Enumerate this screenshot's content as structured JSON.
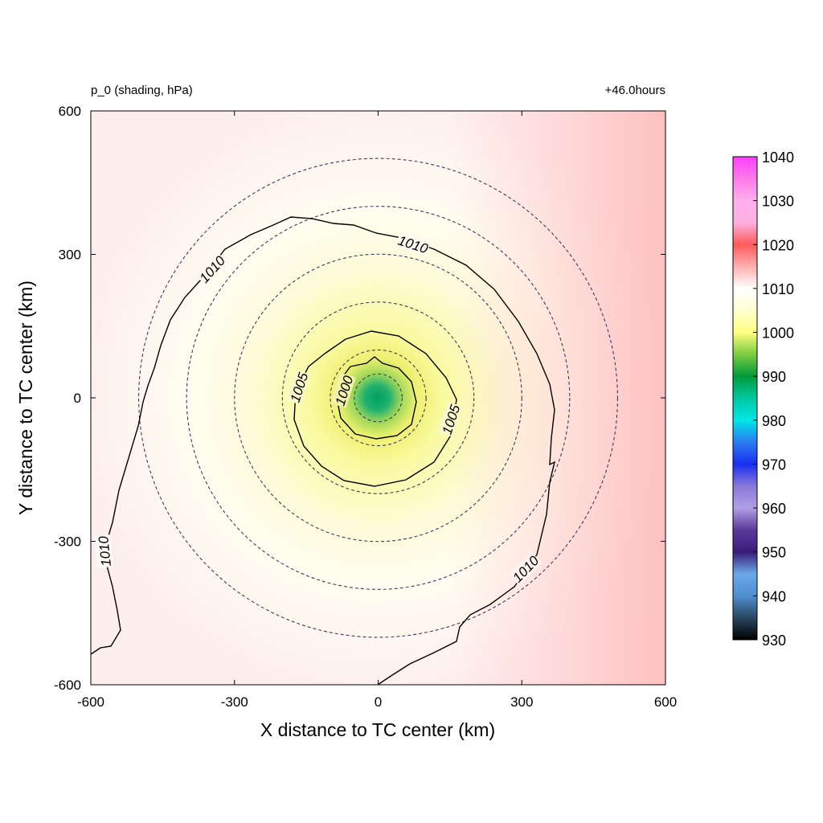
{
  "chart_data": {
    "type": "heatmap",
    "title_left": "p_0 (shading, hPa)",
    "title_right": "+46.0hours",
    "xlabel": "X distance to TC center (km)",
    "ylabel": "Y distance to TC center (km)",
    "xlim": [
      -600,
      600
    ],
    "ylim": [
      -600,
      600
    ],
    "xticks": [
      -600,
      -300,
      0,
      300,
      600
    ],
    "yticks": [
      -600,
      -300,
      0,
      300,
      600
    ],
    "xtick_labels": [
      "-600",
      "-300",
      "0",
      "300",
      "600"
    ],
    "ytick_labels": [
      "-600",
      "-300",
      "0",
      "300",
      "600"
    ],
    "field": {
      "variable": "p_0",
      "units": "hPa",
      "center_value": 988,
      "center_x": 0,
      "center_y": 0,
      "outer_value_west": 1010,
      "outer_value_east": 1016
    },
    "range_rings_km": [
      50,
      100,
      200,
      300,
      400,
      500
    ],
    "contours": [
      {
        "level": 1000,
        "label": "1000",
        "approx_radius_km": 80
      },
      {
        "level": 1005,
        "label": "1005",
        "approx_radius_km": 165
      },
      {
        "level": 1010,
        "label": "1010",
        "approx_radius_km": 420
      }
    ],
    "colorbar": {
      "min": 930,
      "max": 1040,
      "tick_values": [
        1040,
        1030,
        1020,
        1010,
        1000,
        990,
        980,
        970,
        960,
        950,
        940,
        930
      ],
      "tick_labels": [
        "1040",
        "1030",
        "1020",
        "1010",
        "1000",
        "990",
        "980",
        "970",
        "960",
        "950",
        "940",
        "930"
      ],
      "stops": [
        {
          "value": 930,
          "color": "#000000"
        },
        {
          "value": 935,
          "color": "#2a4660"
        },
        {
          "value": 940,
          "color": "#4f8fd0"
        },
        {
          "value": 945,
          "color": "#6aa8e8"
        },
        {
          "value": 950,
          "color": "#3a1a7a"
        },
        {
          "value": 955,
          "color": "#5a3a9a"
        },
        {
          "value": 960,
          "color": "#b0a0e6"
        },
        {
          "value": 965,
          "color": "#8878d8"
        },
        {
          "value": 970,
          "color": "#1a30f0"
        },
        {
          "value": 975,
          "color": "#2a7cf0"
        },
        {
          "value": 980,
          "color": "#00e6e6"
        },
        {
          "value": 985,
          "color": "#00c8a0"
        },
        {
          "value": 990,
          "color": "#009a3a"
        },
        {
          "value": 995,
          "color": "#7ccc40"
        },
        {
          "value": 1000,
          "color": "#ffff80"
        },
        {
          "value": 1005,
          "color": "#ffffd0"
        },
        {
          "value": 1010,
          "color": "#ffffff"
        },
        {
          "value": 1015,
          "color": "#ffb0b0"
        },
        {
          "value": 1020,
          "color": "#ff5a5a"
        },
        {
          "value": 1025,
          "color": "#ffb0e0"
        },
        {
          "value": 1030,
          "color": "#ffb0ee"
        },
        {
          "value": 1035,
          "color": "#ff7ae8"
        },
        {
          "value": 1040,
          "color": "#ff40ff"
        }
      ]
    }
  }
}
